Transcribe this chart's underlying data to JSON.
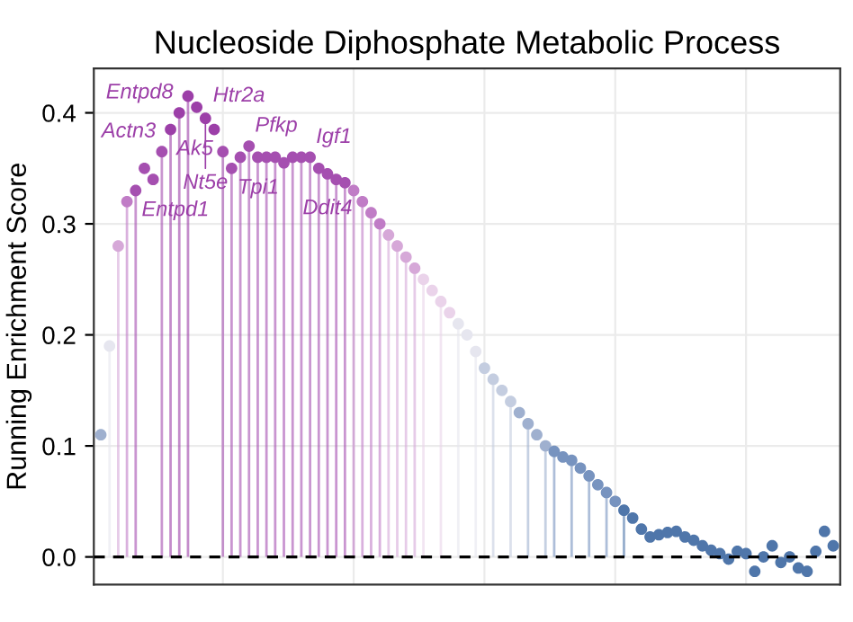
{
  "chart_data": {
    "type": "scatter",
    "title": "Nucleoside Diphosphate Metabolic Process",
    "ylabel": "Running Enrichment Score",
    "categories": [
      null,
      null,
      null,
      null,
      null,
      null,
      null,
      null,
      null,
      null,
      null,
      null,
      null,
      null,
      null,
      null,
      null,
      null,
      null,
      null,
      null,
      null,
      null,
      null,
      null,
      null,
      null,
      null,
      null,
      null,
      null,
      null,
      null,
      null,
      null,
      null,
      null,
      null,
      null,
      null,
      null,
      null,
      null,
      null,
      null,
      null,
      null,
      null,
      null,
      null,
      null,
      null,
      null,
      null,
      null,
      null,
      null,
      null,
      null,
      null,
      null,
      null,
      null,
      null,
      null,
      null,
      null,
      null,
      null,
      null,
      null,
      null,
      null,
      null,
      null,
      null,
      null,
      null,
      null,
      null,
      null,
      null,
      null,
      null,
      null
    ],
    "series": [
      {
        "type": "lollipop",
        "marker": "circle",
        "values": [
          null,
          0.19,
          0.28,
          0.32,
          0.33,
          null,
          null,
          0.365,
          0.385,
          0.4,
          0.415,
          null,
          null,
          null,
          0.365,
          0.35,
          0.36,
          0.37,
          0.36,
          0.36,
          0.36,
          0.355,
          0.36,
          0.36,
          0.36,
          0.35,
          0.345,
          0.34,
          0.337,
          0.33,
          0.32,
          0.31,
          0.3,
          0.29,
          0.28,
          0.27,
          0.26,
          0.25,
          null,
          0.23,
          null,
          0.21,
          null,
          0.185,
          null,
          0.16,
          null,
          0.14,
          null,
          0.12,
          null,
          0.1,
          0.095,
          null,
          0.087,
          null,
          0.073,
          null,
          0.058,
          null,
          0.042,
          null,
          null,
          null,
          null,
          null,
          null,
          null,
          null,
          null,
          null,
          null,
          null,
          null,
          null,
          null,
          null,
          null,
          null,
          null,
          null,
          null,
          null,
          null,
          null
        ],
        "colors": [
          null,
          "#e6e6ef",
          "#d6a8d8",
          "#c07cc6",
          "#a54fb0",
          null,
          null,
          "#a54fb0",
          "#9c3fa8",
          "#9c3fa8",
          "#9c3fa8",
          null,
          null,
          null,
          "#a54fb0",
          "#a54fb0",
          "#a54fb0",
          "#a54fb0",
          "#a54fb0",
          "#a54fb0",
          "#a54fb0",
          "#a54fb0",
          "#a54fb0",
          "#a54fb0",
          "#a54fb0",
          "#a54fb0",
          "#a54fb0",
          "#a54fb0",
          "#a54fb0",
          "#c07cc6",
          "#c07cc6",
          "#c07cc6",
          "#c07cc6",
          "#d6a8d8",
          "#d6a8d8",
          "#d6a8d8",
          "#d6a8d8",
          "#ead3ea",
          null,
          "#ead3ea",
          null,
          "#e6e6ef",
          null,
          "#e6e6ef",
          null,
          "#c4cde0",
          null,
          "#c4cde0",
          null,
          "#9fb0cf",
          null,
          "#9fb0cf",
          "#7793bf",
          null,
          "#7793bf",
          null,
          "#7793bf",
          null,
          "#7793bf",
          null,
          "#4f76aa",
          null,
          null,
          null,
          null,
          null,
          null,
          null,
          null,
          null,
          null,
          null,
          null,
          null,
          null,
          null,
          null,
          null,
          null,
          null,
          null,
          null,
          null,
          null,
          null
        ],
        "value_labels": [
          null,
          null,
          null,
          null,
          "Entpd1",
          null,
          null,
          "Actn3",
          "Ak5",
          "Entpd8",
          "Htr2a",
          null,
          null,
          null,
          null,
          "Tpi1",
          null,
          "Pfkp",
          null,
          null,
          null,
          null,
          null,
          null,
          "Igf1",
          null,
          "Ddit4",
          null,
          null,
          null,
          null,
          null,
          null,
          null,
          null,
          null,
          null,
          null,
          null,
          null,
          null,
          null,
          null,
          null,
          null,
          null,
          null,
          null,
          null,
          null,
          null,
          null,
          null,
          null,
          null,
          null,
          null,
          null,
          null,
          null,
          null,
          null,
          null,
          null,
          null,
          null,
          null,
          null,
          null,
          null,
          null,
          null,
          null,
          null,
          null,
          null,
          null,
          null,
          null,
          null,
          null,
          null,
          null,
          null,
          null
        ]
      },
      {
        "marker": "circle",
        "values": [
          0.11,
          null,
          null,
          null,
          null,
          0.35,
          0.34,
          null,
          null,
          null,
          null,
          0.405,
          0.395,
          0.385,
          null,
          null,
          null,
          null,
          null,
          null,
          null,
          null,
          null,
          null,
          null,
          null,
          null,
          null,
          null,
          null,
          null,
          null,
          null,
          null,
          null,
          null,
          null,
          null,
          0.24,
          null,
          0.22,
          null,
          0.2,
          null,
          0.17,
          null,
          0.15,
          null,
          0.13,
          null,
          0.11,
          null,
          null,
          0.09,
          null,
          0.08,
          null,
          0.065,
          null,
          0.05,
          null,
          0.035,
          0.025,
          0.018,
          0.02,
          0.022,
          0.023,
          0.018,
          0.015,
          0.01,
          0.006,
          0.003,
          -0.002,
          0.005,
          0.003,
          -0.013,
          0,
          0.01,
          -0.005,
          0,
          -0.01,
          -0.013,
          0.005,
          0.023,
          0.01
        ],
        "colors": [
          "#9fb0cf",
          null,
          null,
          null,
          null,
          "#a54fb0",
          "#a54fb0",
          null,
          null,
          null,
          null,
          "#9c3fa8",
          "#9c3fa8",
          "#9c3fa8",
          null,
          null,
          null,
          null,
          null,
          null,
          null,
          null,
          null,
          null,
          null,
          null,
          null,
          null,
          null,
          null,
          null,
          null,
          null,
          null,
          null,
          null,
          null,
          null,
          "#ead3ea",
          null,
          "#ead3ea",
          null,
          "#e6e6ef",
          null,
          "#c4cde0",
          null,
          "#c4cde0",
          null,
          "#9fb0cf",
          null,
          "#9fb0cf",
          null,
          null,
          "#7793bf",
          null,
          "#7793bf",
          null,
          "#7793bf",
          null,
          "#7793bf",
          null,
          "#4f76aa",
          "#4f76aa",
          "#4f76aa",
          "#4f76aa",
          "#4f76aa",
          "#4f76aa",
          "#4f76aa",
          "#4f76aa",
          "#4f76aa",
          "#4f76aa",
          "#4f76aa",
          "#4f76aa",
          "#4f76aa",
          "#4f76aa",
          "#4f76aa",
          "#4f76aa",
          "#4f76aa",
          "#4f76aa",
          "#4f76aa",
          "#4f76aa",
          "#4f76aa",
          "#4f76aa",
          "#4f76aa",
          "#4f76aa"
        ],
        "value_labels": [
          null,
          null,
          null,
          null,
          null,
          null,
          null,
          null,
          null,
          null,
          null,
          null,
          "Nt5e",
          null,
          null,
          null,
          null,
          null,
          null,
          null,
          null,
          null,
          null,
          null,
          null,
          null,
          null,
          null,
          null,
          null,
          null,
          null,
          null,
          null,
          null,
          null,
          null,
          null,
          null,
          null,
          null,
          null,
          null,
          null,
          null,
          null,
          null,
          null,
          null,
          null,
          null,
          null,
          null,
          null,
          null,
          null,
          null,
          null,
          null,
          null,
          null,
          null,
          null,
          null,
          null,
          null,
          null,
          null,
          null,
          null,
          null,
          null,
          null,
          null,
          null,
          null,
          null,
          null,
          null,
          null,
          null,
          null,
          null,
          null,
          null
        ]
      }
    ],
    "ylim": [
      -0.025,
      0.44
    ],
    "yticks": [
      {
        "value": 0,
        "label": "0.0"
      },
      {
        "value": 0.1,
        "label": "0.1"
      },
      {
        "value": 0.2,
        "label": "0.2"
      },
      {
        "value": 0.3,
        "label": "0.3"
      },
      {
        "value": 0.4,
        "label": "0.4"
      }
    ],
    "ref_lines": [
      {
        "axis": "y",
        "value": 0,
        "color": "#000000",
        "line_style": "dashed"
      }
    ],
    "grid": true
  }
}
